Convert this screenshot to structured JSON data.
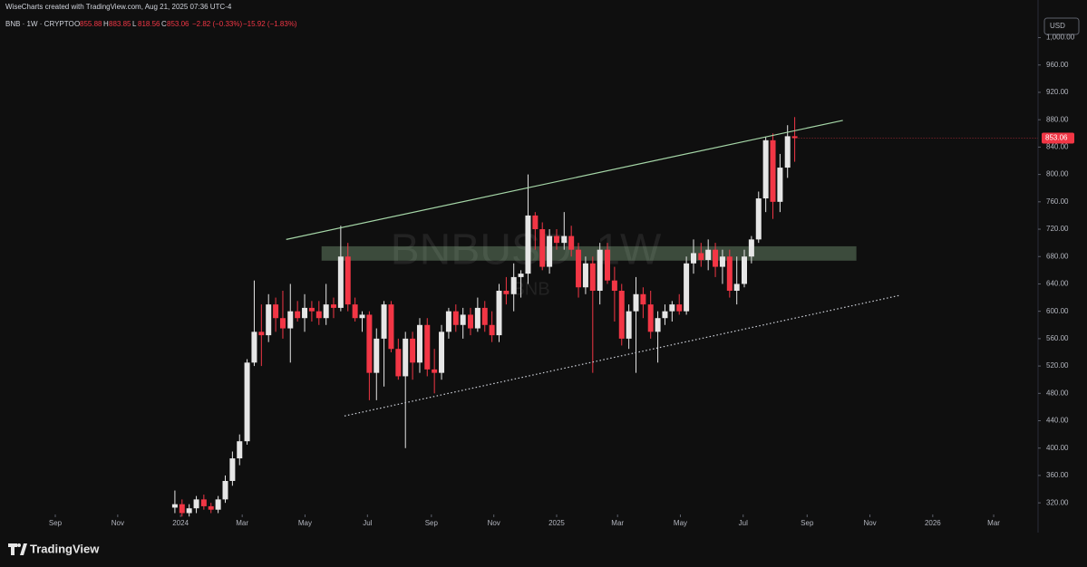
{
  "chart_data": {
    "type": "candlestick",
    "credit": "WiseCharts created with TradingView.com, Aug 21, 2025 07:36 UTC-4",
    "symbol": "BNB · 1W · CRYPTO",
    "ohlc_letters": [
      "O",
      "H",
      "L",
      "C"
    ],
    "change": "−2.82 (−0.33%)",
    "change2": "−15.92 (−1.83%)",
    "currency": "USD",
    "watermark": "BNBUSD, 1W",
    "watermark_sub": "BNB",
    "brand": "TradingView",
    "up_color": "#e6e6e6",
    "down_color": "#f23645",
    "x": [
      2023.985,
      2024.004,
      2024.023,
      2024.042,
      2024.062,
      2024.081,
      2024.1,
      2024.119,
      2024.138,
      2024.157,
      2024.177,
      2024.196,
      2024.215,
      2024.234,
      2024.253,
      2024.272,
      2024.292,
      2024.311,
      2024.33,
      2024.349,
      2024.368,
      2024.387,
      2024.407,
      2024.426,
      2024.445,
      2024.464,
      2024.483,
      2024.502,
      2024.521,
      2024.541,
      2024.56,
      2024.579,
      2024.598,
      2024.617,
      2024.636,
      2024.656,
      2024.675,
      2024.694,
      2024.713,
      2024.732,
      2024.751,
      2024.771,
      2024.79,
      2024.809,
      2024.828,
      2024.847,
      2024.866,
      2024.886,
      2024.905,
      2024.924,
      2024.943,
      2024.962,
      2024.981,
      2025.0,
      2025.02,
      2025.039,
      2025.058,
      2025.077,
      2025.096,
      2025.115,
      2025.135,
      2025.154,
      2025.173,
      2025.192,
      2025.211,
      2025.23,
      2025.25,
      2025.269,
      2025.288,
      2025.307,
      2025.326,
      2025.345,
      2025.364,
      2025.384,
      2025.403,
      2025.422,
      2025.441,
      2025.46,
      2025.479,
      2025.499,
      2025.518,
      2025.537,
      2025.556,
      2025.575,
      2025.594,
      2025.614,
      2025.633
    ],
    "open": [
      313,
      318,
      305,
      312,
      325,
      315,
      310,
      325,
      352,
      385,
      410,
      525,
      570,
      565,
      610,
      590,
      575,
      600,
      590,
      605,
      600,
      590,
      610,
      605,
      680,
      610,
      590,
      595,
      510,
      560,
      610,
      545,
      505,
      560,
      525,
      580,
      515,
      510,
      570,
      600,
      580,
      595,
      575,
      605,
      580,
      565,
      630,
      625,
      650,
      655,
      740,
      720,
      665,
      710,
      700,
      710,
      690,
      635,
      670,
      630,
      690,
      645,
      630,
      560,
      600,
      625,
      610,
      570,
      590,
      600,
      610,
      600,
      670,
      685,
      675,
      690,
      665,
      680,
      630,
      640,
      680,
      705,
      765,
      850,
      760,
      810,
      855.88
    ],
    "high": [
      338,
      325,
      318,
      330,
      332,
      320,
      330,
      360,
      395,
      420,
      530,
      645,
      610,
      625,
      620,
      630,
      640,
      615,
      625,
      615,
      615,
      640,
      620,
      725,
      700,
      620,
      600,
      600,
      575,
      615,
      615,
      560,
      570,
      570,
      590,
      590,
      545,
      580,
      605,
      610,
      605,
      605,
      620,
      615,
      600,
      640,
      650,
      670,
      660,
      800,
      745,
      730,
      720,
      720,
      745,
      725,
      700,
      680,
      680,
      700,
      700,
      665,
      640,
      610,
      650,
      635,
      630,
      600,
      610,
      615,
      625,
      680,
      705,
      700,
      705,
      700,
      690,
      690,
      680,
      690,
      710,
      775,
      855,
      860,
      830,
      872,
      883.85
    ],
    "low": [
      305,
      300,
      300,
      305,
      310,
      305,
      305,
      320,
      345,
      375,
      405,
      520,
      520,
      555,
      570,
      560,
      525,
      585,
      570,
      585,
      580,
      580,
      590,
      600,
      600,
      585,
      570,
      470,
      470,
      490,
      540,
      500,
      400,
      500,
      510,
      505,
      480,
      500,
      560,
      570,
      560,
      565,
      570,
      570,
      555,
      555,
      610,
      600,
      620,
      640,
      690,
      660,
      655,
      690,
      690,
      680,
      620,
      625,
      510,
      610,
      640,
      585,
      550,
      545,
      510,
      590,
      560,
      525,
      580,
      585,
      595,
      595,
      655,
      665,
      660,
      650,
      640,
      620,
      610,
      635,
      670,
      700,
      745,
      735,
      745,
      795,
      818.56
    ],
    "close": [
      318,
      305,
      312,
      325,
      315,
      310,
      325,
      352,
      385,
      410,
      525,
      570,
      565,
      610,
      590,
      575,
      600,
      590,
      605,
      600,
      590,
      610,
      605,
      680,
      610,
      590,
      595,
      510,
      560,
      610,
      545,
      505,
      560,
      525,
      580,
      515,
      510,
      570,
      600,
      580,
      595,
      575,
      605,
      580,
      565,
      630,
      625,
      650,
      655,
      740,
      720,
      665,
      710,
      700,
      710,
      690,
      635,
      670,
      630,
      690,
      645,
      630,
      560,
      600,
      625,
      610,
      570,
      590,
      600,
      610,
      600,
      670,
      685,
      675,
      690,
      665,
      680,
      630,
      640,
      680,
      705,
      765,
      850,
      760,
      810,
      855.88,
      853.06
    ],
    "xlim": [
      2023.52,
      2026.28
    ],
    "xticks": [
      {
        "value": 2023.667,
        "label": "Sep"
      },
      {
        "value": 2023.833,
        "label": "Nov"
      },
      {
        "value": 2024.0,
        "label": "2024"
      },
      {
        "value": 2024.164,
        "label": "Mar"
      },
      {
        "value": 2024.331,
        "label": "May"
      },
      {
        "value": 2024.497,
        "label": "Jul"
      },
      {
        "value": 2024.667,
        "label": "Sep"
      },
      {
        "value": 2024.833,
        "label": "Nov"
      },
      {
        "value": 2025.0,
        "label": "2025"
      },
      {
        "value": 2025.162,
        "label": "Mar"
      },
      {
        "value": 2025.329,
        "label": "May"
      },
      {
        "value": 2025.496,
        "label": "Jul"
      },
      {
        "value": 2025.666,
        "label": "Sep"
      },
      {
        "value": 2025.833,
        "label": "Nov"
      },
      {
        "value": 2026.0,
        "label": "2026"
      },
      {
        "value": 2026.162,
        "label": "Mar"
      }
    ],
    "ylim": [
      303,
      1055
    ],
    "yticks": [
      {
        "value": 320,
        "label": "320.00"
      },
      {
        "value": 360,
        "label": "360.00"
      },
      {
        "value": 400,
        "label": "400.00"
      },
      {
        "value": 440,
        "label": "440.00"
      },
      {
        "value": 480,
        "label": "480.00"
      },
      {
        "value": 520,
        "label": "520.00"
      },
      {
        "value": 560,
        "label": "560.00"
      },
      {
        "value": 600,
        "label": "600.00"
      },
      {
        "value": 640,
        "label": "640.00"
      },
      {
        "value": 680,
        "label": "680.00"
      },
      {
        "value": 720,
        "label": "720.00"
      },
      {
        "value": 760,
        "label": "760.00"
      },
      {
        "value": 800,
        "label": "800.00"
      },
      {
        "value": 840,
        "label": "840.00"
      },
      {
        "value": 880,
        "label": "880.00"
      },
      {
        "value": 920,
        "label": "920.00"
      },
      {
        "value": 960,
        "label": "960.00"
      },
      {
        "value": 1000,
        "label": "1,000.00"
      }
    ],
    "trendlines": [
      {
        "x": [
          2024.281,
          2025.761
        ],
        "y": [
          705,
          879
        ],
        "color": "#a5d6a7",
        "style": "solid"
      },
      {
        "x": [
          2024.436,
          2025.91
        ],
        "y": [
          447,
          623
        ],
        "color": "#d1d4dc",
        "style": "dotted"
      }
    ],
    "zone": {
      "x": [
        2024.375,
        2025.797
      ],
      "y": [
        674,
        695
      ],
      "color": "#a5d6a7"
    }
  }
}
